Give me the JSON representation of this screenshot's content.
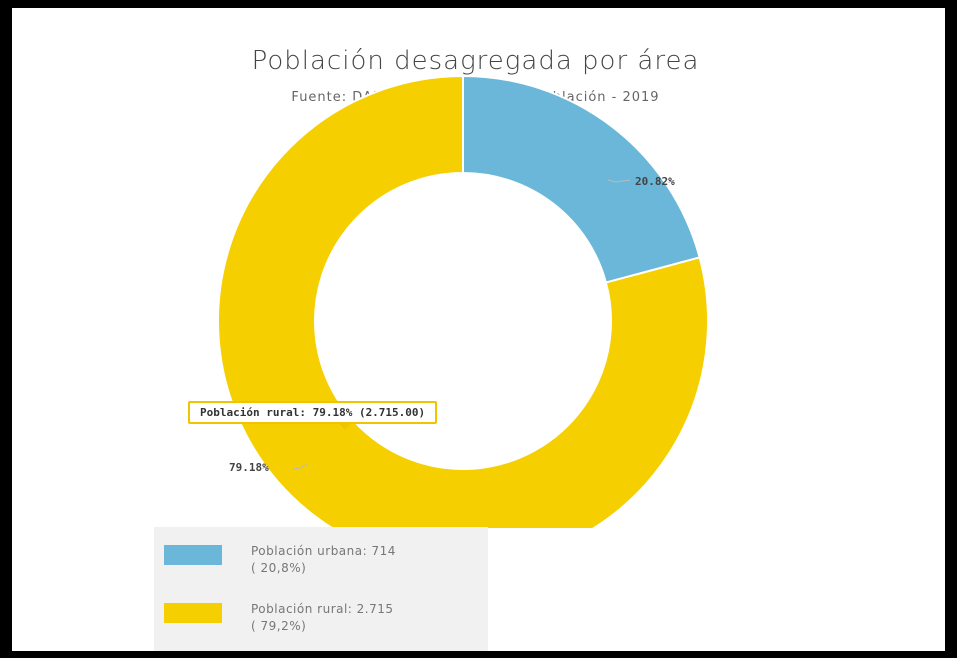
{
  "chart_data": {
    "type": "pie",
    "variant": "donut",
    "title": "Población desagregada por área",
    "subtitle": "Fuente: DANE - Proyecciones de población - 2019",
    "slices": [
      {
        "label": "Población urbana",
        "value": 714,
        "percent": 20.82,
        "percent_label": "20.82%",
        "legend_text": "Población urbana: 714",
        "legend_percent": "( 20,8%)",
        "color": "#6ab7d9"
      },
      {
        "label": "Población rural",
        "value": 2715,
        "percent": 79.18,
        "percent_label": "79.18%",
        "legend_text": "Población rural: 2.715",
        "legend_percent": "( 79,2%)",
        "color": "#f5cf00"
      }
    ],
    "tooltip": "Población rural: 79.18% (2.715.00)",
    "legend_placement": "bottom-left"
  }
}
